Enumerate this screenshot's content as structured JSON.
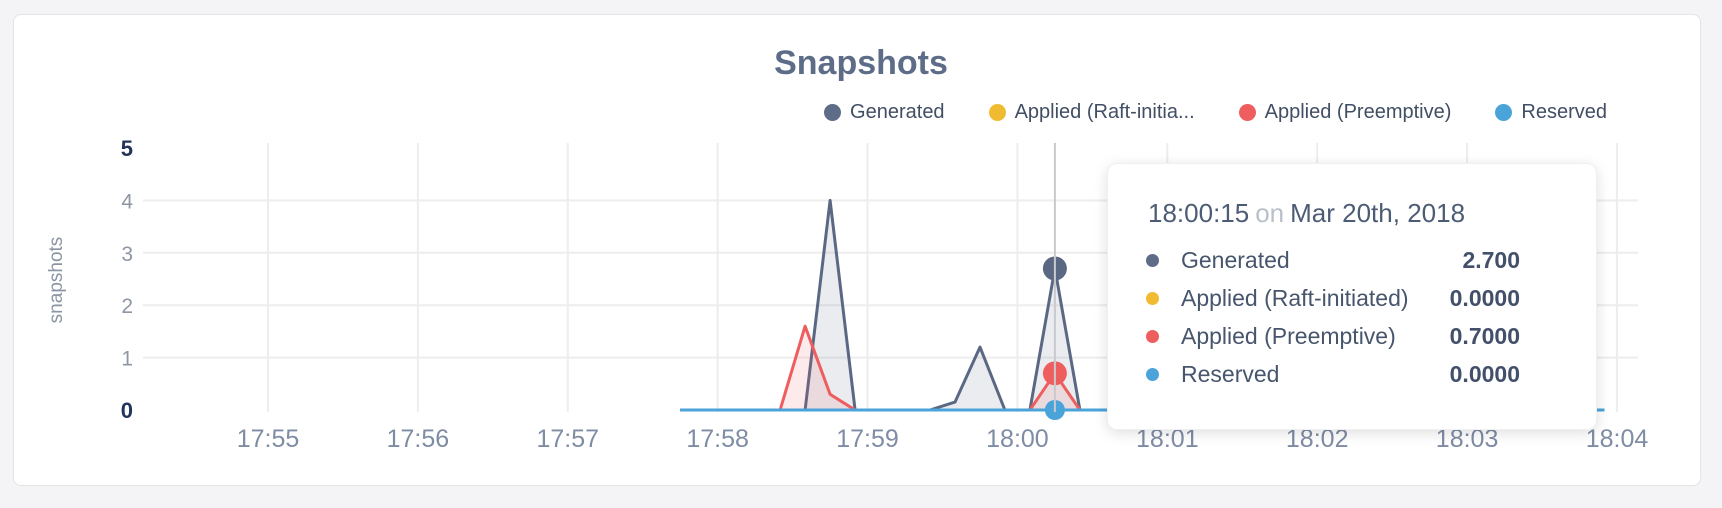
{
  "page": {
    "background": "#f4f4f6"
  },
  "chart": {
    "title": "Snapshots",
    "y_axis_label": "snapshots",
    "legend": [
      {
        "label": "Generated",
        "color": "#5f6c87"
      },
      {
        "label": "Applied (Raft-initia...",
        "color": "#f0bb31"
      },
      {
        "label": "Applied (Preemptive)",
        "color": "#ef5e5f"
      },
      {
        "label": "Reserved",
        "color": "#4aa3d9"
      }
    ]
  },
  "chart_data": {
    "type": "area",
    "title": "Snapshots",
    "ylabel": "snapshots",
    "xlabel": "",
    "x_ticks": [
      "17:55",
      "17:56",
      "17:57",
      "17:58",
      "17:59",
      "18:00",
      "18:01",
      "18:02",
      "18:03",
      "18:04"
    ],
    "y_ticks": [
      0,
      1,
      2,
      3,
      4,
      5
    ],
    "ylim": [
      0,
      5
    ],
    "grid": true,
    "legend_position": "top-right",
    "series": [
      {
        "name": "Generated",
        "color": "#5b6884",
        "fill": "rgba(95,108,135,0.13)",
        "points": [
          [
            "17:57:45",
            0
          ],
          [
            "17:58:35",
            0
          ],
          [
            "17:58:45",
            4.0
          ],
          [
            "17:58:55",
            0
          ],
          [
            "17:59:25",
            0
          ],
          [
            "17:59:35",
            0.15
          ],
          [
            "17:59:45",
            1.2
          ],
          [
            "17:59:55",
            0
          ],
          [
            "18:00:05",
            0
          ],
          [
            "18:00:15",
            2.7
          ],
          [
            "18:00:25",
            0
          ],
          [
            "18:03:55",
            0
          ]
        ]
      },
      {
        "name": "Applied (Raft-initiated)",
        "color": "#f0bb31",
        "fill": "none",
        "points": [
          [
            "17:57:45",
            0
          ],
          [
            "18:03:55",
            0
          ]
        ]
      },
      {
        "name": "Applied (Preemptive)",
        "color": "#ef5e5f",
        "fill": "rgba(239,94,95,0.12)",
        "points": [
          [
            "17:57:45",
            0
          ],
          [
            "17:58:25",
            0
          ],
          [
            "17:58:35",
            1.6
          ],
          [
            "17:58:45",
            0.3
          ],
          [
            "17:58:55",
            0
          ],
          [
            "18:00:05",
            0
          ],
          [
            "18:00:15",
            0.7
          ],
          [
            "18:00:25",
            0
          ],
          [
            "18:03:55",
            0
          ]
        ]
      },
      {
        "name": "Reserved",
        "color": "#4aa3d9",
        "fill": "none",
        "points": [
          [
            "17:57:45",
            0
          ],
          [
            "18:03:55",
            0
          ]
        ]
      }
    ],
    "highlight": {
      "time": "18:00:15",
      "values": {
        "Generated": 2.7,
        "Applied (Raft-initiated)": 0.0,
        "Applied (Preemptive)": 0.7,
        "Reserved": 0.0
      }
    }
  },
  "tooltip": {
    "time": "18:00:15",
    "conjunction": "on",
    "date": "Mar 20th, 2018",
    "rows": [
      {
        "label": "Generated",
        "color": "#5f6c87",
        "value": "2.700"
      },
      {
        "label": "Applied (Raft-initiated)",
        "color": "#f0bb31",
        "value": "0.0000"
      },
      {
        "label": "Applied (Preemptive)",
        "color": "#ef5e5f",
        "value": "0.7000"
      },
      {
        "label": "Reserved",
        "color": "#4aa3d9",
        "value": "0.0000"
      }
    ]
  }
}
